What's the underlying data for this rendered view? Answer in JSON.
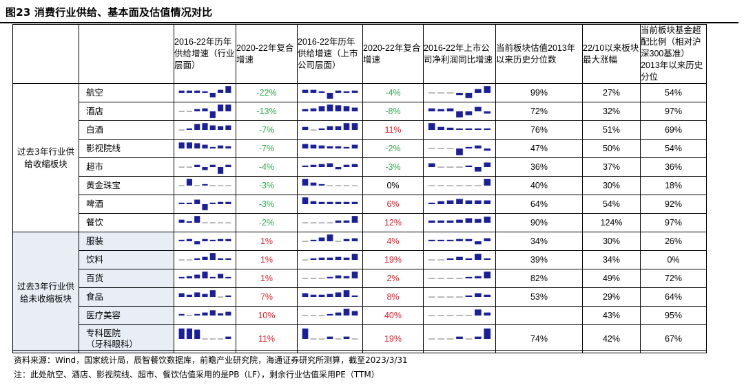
{
  "title": "图23 消费行业供给、基本面及估值情况对比",
  "headers": [
    "",
    "",
    "2016-22年历年供给增速（行业层面）",
    "2020-22年复合增速",
    "2016-22年历年供给增速（上市公司层面）",
    "2020-22年复合增速",
    "2016-22年上市公司净利润同比增速",
    "当前板块估值2013年以来历史分位数",
    "22/10以来板块最大涨幅",
    "当前板块基金超配比例（相对沪深300基准）2013年以来历史分位"
  ],
  "groups": [
    {
      "label": "过去3年行业供给收缩板块"
    },
    {
      "label": "过去3年行业供给未收缩板块"
    }
  ],
  "colors": {
    "bar": "#1a1f9c",
    "green": "#2ea84a",
    "red": "#e8202a",
    "shade": "#e9eef5"
  },
  "rows": [
    {
      "group": 0,
      "name": "航空",
      "spark1": [
        0.3,
        0.3,
        0.3,
        0.2,
        -0.6,
        0.4,
        0.9
      ],
      "cagr1": "-22%",
      "c1": "green",
      "spark2": [
        0.4,
        0.4,
        0.2,
        -0.8,
        0.3,
        0.2,
        0.3
      ],
      "cagr2": "-4%",
      "c2": "green",
      "spark3": [
        0.1,
        0.1,
        0.1,
        -0.3,
        -0.7,
        0.5,
        0.9
      ],
      "val": "99%",
      "rise": "27%",
      "fund": "54%"
    },
    {
      "group": 0,
      "name": "酒店",
      "spark1": [
        0.1,
        0.1,
        0.3,
        0.4,
        -0.9,
        0.9,
        0.9
      ],
      "cagr1": "-13%",
      "c1": "green",
      "spark2": [
        0.3,
        0.4,
        0.7,
        0.9,
        0.8,
        0.7,
        0.5
      ],
      "cagr2": "-8%",
      "c2": "green",
      "spark3": [
        0.4,
        0.3,
        0.4,
        -0.8,
        -0.5,
        0.6,
        -0.3
      ],
      "val": "72%",
      "rise": "32%",
      "fund": "97%"
    },
    {
      "group": 0,
      "name": "白酒",
      "spark1": [
        0.1,
        0.2,
        0.8,
        0.9,
        0.6,
        0.5,
        0.6
      ],
      "cagr1": "-7%",
      "c1": "green",
      "spark2": [
        0.4,
        0.1,
        0.2,
        0.5,
        0.5,
        0.9,
        0.9
      ],
      "cagr2": "11%",
      "c2": "red",
      "spark3": [
        0.9,
        0.4,
        0.3,
        0.2,
        0.2,
        0.2,
        0.2
      ],
      "val": "76%",
      "rise": "51%",
      "fund": "69%"
    },
    {
      "group": 0,
      "name": "影视院线",
      "spark1": [
        0.8,
        0.8,
        0.7,
        0.5,
        0.2,
        0.4,
        0.3
      ],
      "cagr1": "-7%",
      "c1": "green",
      "spark2": [
        0.6,
        0.5,
        0.4,
        0.3,
        0.3,
        0.2,
        0.5
      ],
      "cagr2": "-2%",
      "c2": "green",
      "spark3": [
        0.1,
        0.1,
        0.1,
        -0.9,
        0.2,
        0.4,
        -0.3
      ],
      "val": "47%",
      "rise": "50%",
      "fund": "54%"
    },
    {
      "group": 0,
      "name": "超市",
      "spark1": [
        0.1,
        0.1,
        0.3,
        -0.4,
        0.3,
        -0.9,
        0.3
      ],
      "cagr1": "-4%",
      "c1": "green",
      "spark2": [
        0.2,
        0.3,
        0.4,
        0.5,
        -0.3,
        0.3,
        0.4
      ],
      "cagr2": "-3%",
      "c2": "green",
      "spark3": [
        0.5,
        0.1,
        0.1,
        0.1,
        0.2,
        -0.6,
        0.6
      ],
      "val": "36%",
      "rise": "37%",
      "fund": "36%"
    },
    {
      "group": 0,
      "name": "黄金珠宝",
      "spark1": [
        0.1,
        0.9,
        0.1,
        0.2,
        0.1,
        0.1,
        0.1
      ],
      "cagr1": "-3%",
      "c1": "green",
      "spark2": [
        0.9,
        0.4,
        0.2,
        0.1,
        0.1,
        0.1,
        0.1
      ],
      "cagr2": "0%",
      "c2": "black",
      "spark3": [
        0.1,
        0.1,
        0.1,
        0.1,
        0.1,
        0.1,
        0.9
      ],
      "val": "40%",
      "rise": "30%",
      "fund": "18%"
    },
    {
      "group": 0,
      "name": "啤酒",
      "spark1": [
        0.2,
        0.2,
        0.6,
        -0.8,
        0.2,
        0.3,
        0.3
      ],
      "cagr1": "-3%",
      "c1": "green",
      "spark2": [
        0.9,
        0.4,
        0.3,
        0.3,
        0.3,
        0.3,
        0.3
      ],
      "cagr2": "6%",
      "c2": "red",
      "spark3": [
        0.2,
        0.4,
        0.5,
        0.7,
        0.5,
        0.5,
        0.5
      ],
      "val": "64%",
      "rise": "54%",
      "fund": "92%"
    },
    {
      "group": 0,
      "name": "餐饮",
      "spark1": [
        0.4,
        0.2,
        0.9,
        0.1,
        0.1,
        0.1,
        0.1
      ],
      "cagr1": "-2%",
      "c1": "green",
      "spark2": [
        0.1,
        0.1,
        0.1,
        0.1,
        0.3,
        0.3,
        0.9
      ],
      "cagr2": "12%",
      "c2": "red",
      "spark3": [
        0.3,
        0.3,
        0.3,
        0.4,
        0.6,
        0.5,
        0.8
      ],
      "val": "90%",
      "rise": "124%",
      "fund": "97%"
    },
    {
      "group": 1,
      "name": "服装",
      "spark1": [
        0.2,
        0.3,
        -0.4,
        0.3,
        0.2,
        0.3,
        0.3
      ],
      "cagr1": "1%",
      "c1": "red",
      "spark2": [
        0.1,
        0.2,
        0.5,
        0.9,
        0.1,
        0.3,
        0.4
      ],
      "cagr2": "4%",
      "c2": "red",
      "spark3": [
        0.2,
        0.2,
        0.2,
        0.3,
        0.3,
        -0.4,
        0.4
      ],
      "val": "34%",
      "rise": "30%",
      "fund": "26%"
    },
    {
      "group": 1,
      "name": "饮料",
      "spark1": [
        0.1,
        0.1,
        0.2,
        0.4,
        0.9,
        0.2,
        0.2
      ],
      "cagr1": "1%",
      "c1": "red",
      "spark2": [
        0.1,
        0.2,
        0.3,
        0.3,
        0.4,
        0.3,
        0.8
      ],
      "cagr2": "19%",
      "c2": "red",
      "spark3": [
        0.1,
        0.1,
        0.2,
        0.4,
        0.2,
        0.8,
        0.2
      ],
      "val": "39%",
      "rise": "34%",
      "fund": "0%"
    },
    {
      "group": 1,
      "name": "百货",
      "spark1": [
        0.2,
        0.3,
        0.5,
        0.9,
        0.2,
        0.6,
        0.2
      ],
      "cagr1": "1%",
      "c1": "red",
      "spark2": [
        0.1,
        0.1,
        0.1,
        0.2,
        0.4,
        0.3,
        0.9
      ],
      "cagr2": "2%",
      "c2": "red",
      "spark3": [
        0.1,
        0.1,
        0.1,
        0.1,
        0.2,
        0.3,
        0.9
      ],
      "val": "82%",
      "rise": "49%",
      "fund": "72%"
    },
    {
      "group": 1,
      "name": "食品",
      "spark1": [
        0.5,
        0.3,
        0.6,
        0.4,
        0.9,
        0.1,
        0.2
      ],
      "cagr1": "7%",
      "c1": "red",
      "spark2": [
        0.5,
        0.3,
        0.3,
        0.4,
        0.6,
        0.9,
        0.2
      ],
      "cagr2": "8%",
      "c2": "red",
      "spark3": [
        0.1,
        0.1,
        0.1,
        0.1,
        0.2,
        0.5,
        0.3
      ],
      "val": "53%",
      "rise": "29%",
      "fund": "64%"
    },
    {
      "group": 1,
      "name": "医疗美容",
      "spark1": [
        0.2,
        0.1,
        0.2,
        0.4,
        0.7,
        0.3,
        0.5
      ],
      "cagr1": "10%",
      "c1": "red",
      "spark2": [
        0.1,
        0.1,
        0.1,
        0.2,
        0.4,
        0.9,
        0.6
      ],
      "cagr2": "40%",
      "c2": "red",
      "spark3": [
        0.1,
        0.1,
        0.1,
        0.1,
        0.1,
        0.8,
        0.4
      ],
      "val": "",
      "rise": "43%",
      "fund": "95%"
    },
    {
      "group": 1,
      "name": "专科医院\n（牙科眼科）",
      "tall": true,
      "spark1": [
        0.9,
        0.9,
        0.8,
        0.1,
        0.1,
        0.1,
        0.2
      ],
      "cagr1": "11%",
      "c1": "red",
      "spark2": [
        0.9,
        0.1,
        0.1,
        0.2,
        0.1,
        0.2,
        0.1
      ],
      "cagr2": "19%",
      "c2": "red",
      "spark3": [
        0.1,
        0.1,
        0.1,
        0.2,
        0.1,
        0.2,
        0.9
      ],
      "val": "74%",
      "rise": "42%",
      "fund": "67%"
    }
  ],
  "footnotes": {
    "source": "资料来源：Wind，国家统计局，辰智餐饮数据库，前瞻产业研究院，海通证券研究所测算，截至2023/3/31",
    "note": "注：此处航空、酒店、影视院线、超市、餐饮估值采用的是PB（LF），剩余行业估值采用PE（TTM）"
  }
}
